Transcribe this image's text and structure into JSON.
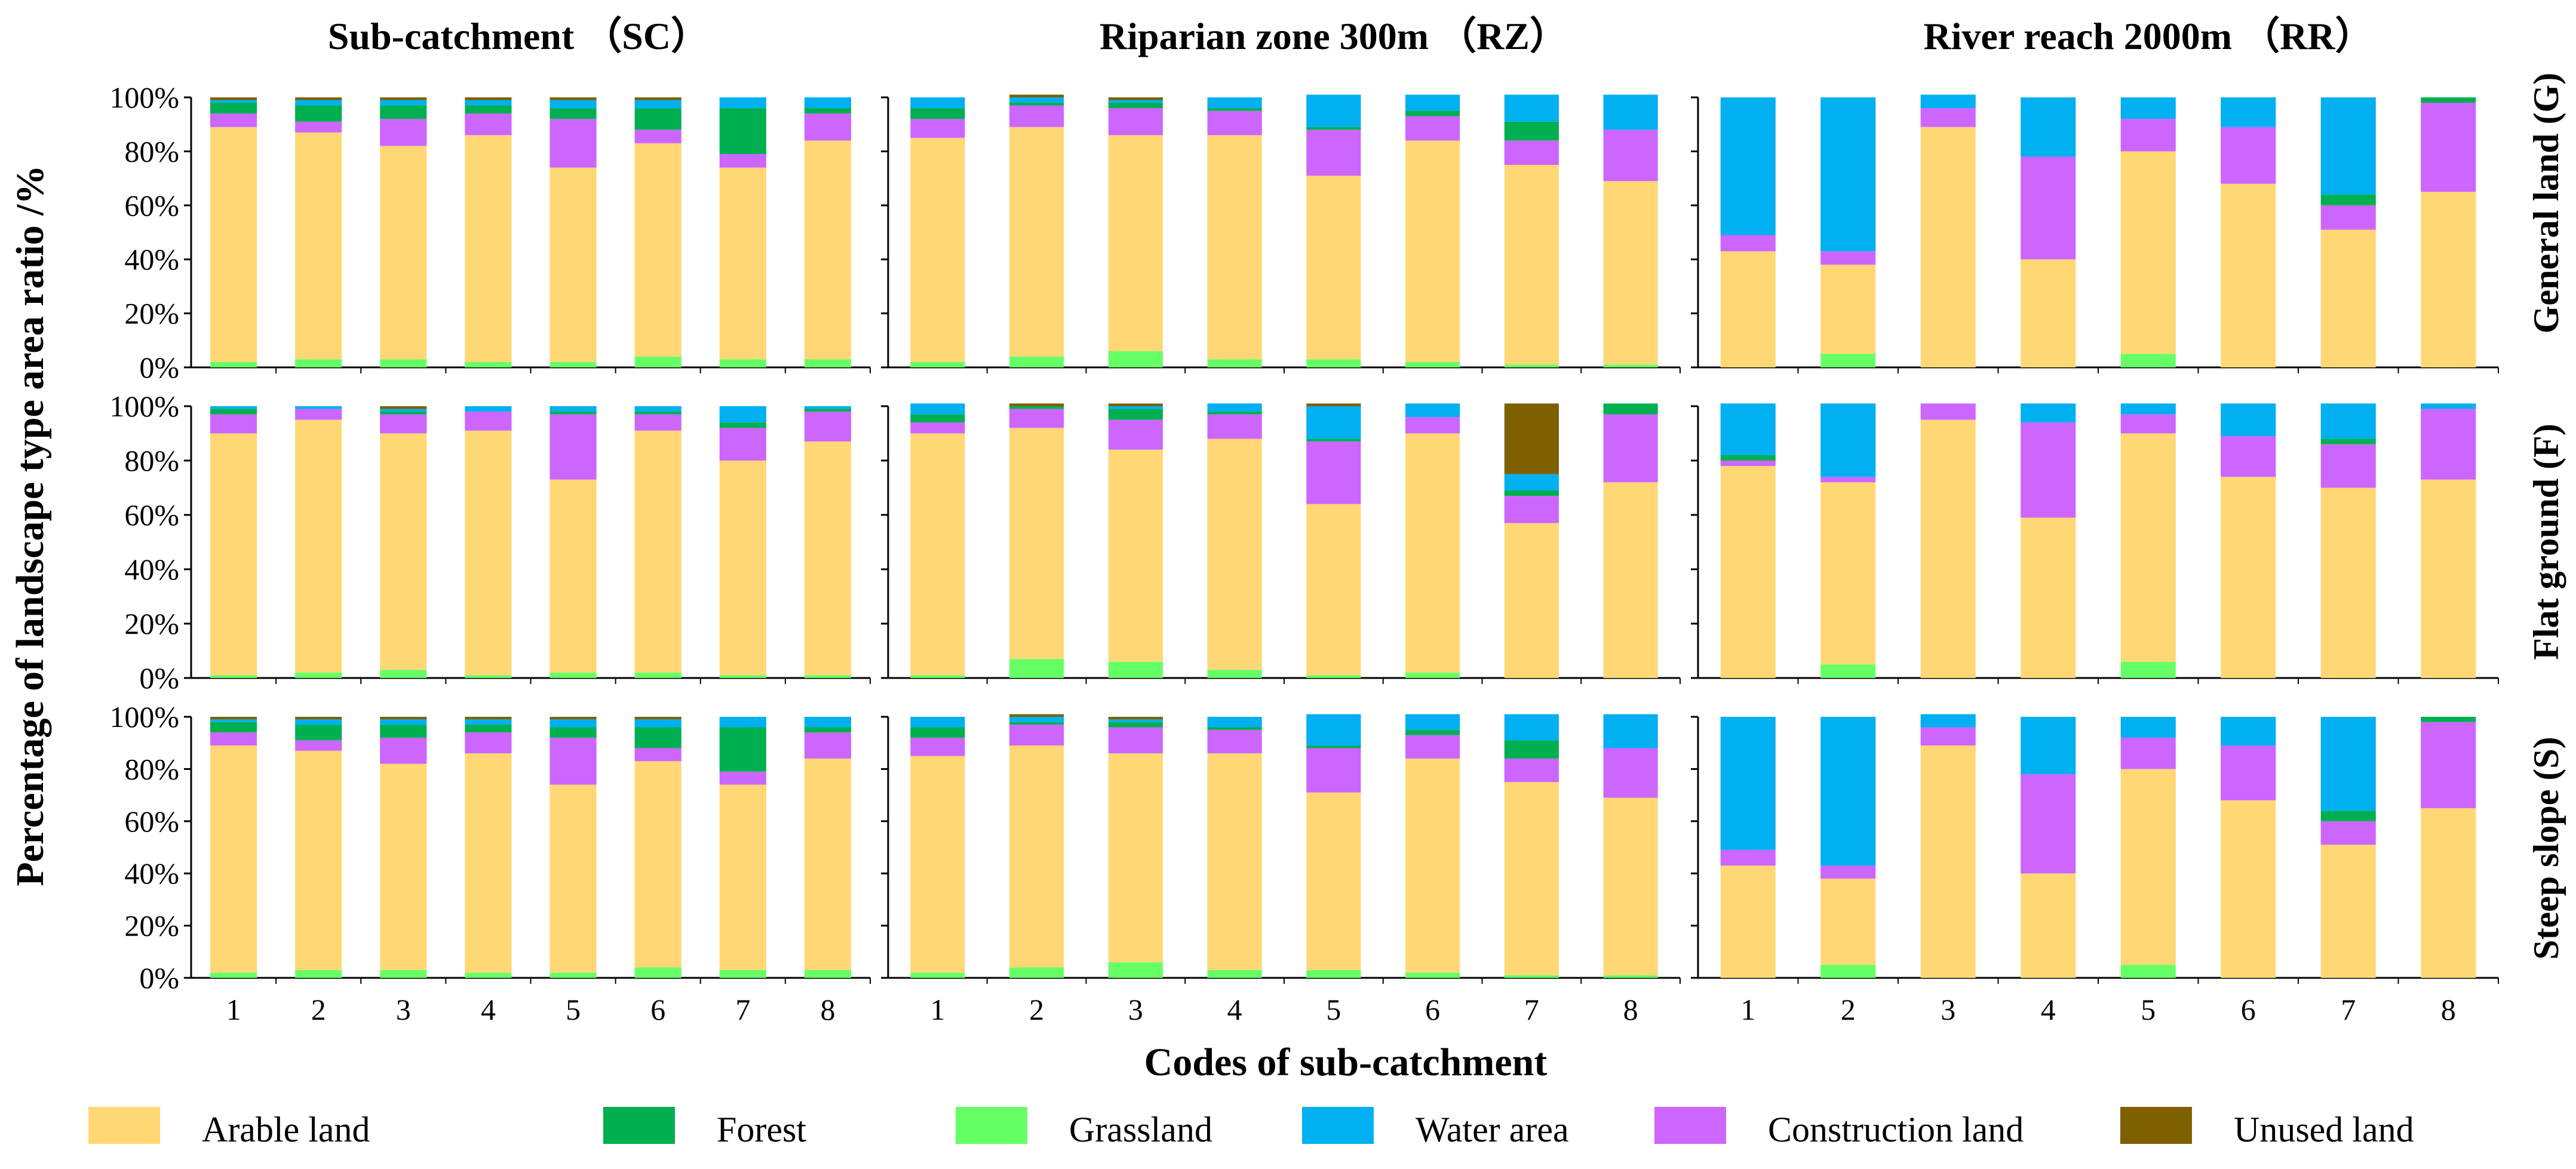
{
  "chart_data": {
    "type": "bar",
    "stacked": true,
    "title": "",
    "xlabel": "Codes of sub-catchment",
    "ylabel": "Percentage of landscape type area ratio /%",
    "ylim": [
      0,
      100
    ],
    "y_ticks": [
      "0%",
      "20%",
      "40%",
      "60%",
      "80%",
      "100%"
    ],
    "categories": [
      "1",
      "2",
      "3",
      "4",
      "5",
      "6",
      "7",
      "8"
    ],
    "column_titles": [
      "Sub-catchment （SC）",
      "Riparian zone 300m （RZ）",
      "River reach 2000m （RR）"
    ],
    "row_titles": [
      "General land (G)",
      "Flat ground (F)",
      "Steep slope (S)"
    ],
    "series_names": [
      "Arable land",
      "Forest",
      "Grassland",
      "Water area",
      "Construction land",
      "Unused land"
    ],
    "series_colors": {
      "Grassland": "#66ff66",
      "Arable land": "#ffd875",
      "Construction land": "#cc66ff",
      "Forest": "#00b050",
      "Water area": "#00b0f0",
      "Unused land": "#7f6000"
    },
    "stack_order": [
      "Grassland",
      "Arable land",
      "Construction land",
      "Forest",
      "Water area",
      "Unused land"
    ],
    "panels": [
      {
        "row": "General land (G)",
        "column": "Sub-catchment （SC）",
        "series": [
          {
            "name": "Grassland",
            "values": [
              2,
              3,
              3,
              2,
              2,
              4,
              3,
              3
            ]
          },
          {
            "name": "Arable land",
            "values": [
              87,
              84,
              79,
              84,
              72,
              79,
              71,
              81
            ]
          },
          {
            "name": "Construction land",
            "values": [
              5,
              4,
              10,
              8,
              18,
              5,
              5,
              10
            ]
          },
          {
            "name": "Forest",
            "values": [
              4,
              6,
              5,
              3,
              4,
              8,
              17,
              2
            ]
          },
          {
            "name": "Water area",
            "values": [
              1,
              2,
              2,
              2,
              3,
              3,
              4,
              4
            ]
          },
          {
            "name": "Unused land",
            "values": [
              1,
              1,
              1,
              1,
              1,
              1,
              0,
              0
            ]
          }
        ]
      },
      {
        "row": "General land (G)",
        "column": "Riparian zone 300m （RZ）",
        "series": [
          {
            "name": "Grassland",
            "values": [
              2,
              4,
              6,
              3,
              3,
              2,
              1,
              1
            ]
          },
          {
            "name": "Arable land",
            "values": [
              83,
              85,
              80,
              83,
              68,
              82,
              74,
              68
            ]
          },
          {
            "name": "Construction land",
            "values": [
              7,
              8,
              10,
              9,
              17,
              9,
              9,
              19
            ]
          },
          {
            "name": "Forest",
            "values": [
              4,
              1,
              2,
              1,
              1,
              2,
              7,
              0
            ]
          },
          {
            "name": "Water area",
            "values": [
              4,
              2,
              1,
              4,
              12,
              6,
              10,
              13
            ]
          },
          {
            "name": "Unused land",
            "values": [
              0,
              1,
              1,
              0,
              0,
              0,
              0,
              0
            ]
          }
        ]
      },
      {
        "row": "General land (G)",
        "column": "River reach 2000m （RR）",
        "series": [
          {
            "name": "Grassland",
            "values": [
              0,
              5,
              0,
              0,
              5,
              0,
              0,
              0
            ]
          },
          {
            "name": "Arable land",
            "values": [
              43,
              33,
              89,
              40,
              75,
              68,
              51,
              65
            ]
          },
          {
            "name": "Construction land",
            "values": [
              6,
              5,
              7,
              38,
              12,
              21,
              9,
              33
            ]
          },
          {
            "name": "Forest",
            "values": [
              0,
              0,
              0,
              0,
              0,
              0,
              4,
              2
            ]
          },
          {
            "name": "Water area",
            "values": [
              51,
              57,
              5,
              22,
              8,
              11,
              36,
              0
            ]
          },
          {
            "name": "Unused land",
            "values": [
              0,
              0,
              0,
              0,
              0,
              0,
              0,
              0
            ]
          }
        ]
      },
      {
        "row": "Flat ground (F)",
        "column": "Sub-catchment （SC）",
        "series": [
          {
            "name": "Grassland",
            "values": [
              1,
              2,
              3,
              1,
              2,
              2,
              1,
              1
            ]
          },
          {
            "name": "Arable land",
            "values": [
              89,
              93,
              87,
              90,
              71,
              89,
              79,
              86
            ]
          },
          {
            "name": "Construction land",
            "values": [
              7,
              4,
              7,
              7,
              24,
              6,
              12,
              11
            ]
          },
          {
            "name": "Forest",
            "values": [
              2,
              0,
              1,
              0,
              1,
              1,
              2,
              1
            ]
          },
          {
            "name": "Water area",
            "values": [
              1,
              1,
              1,
              2,
              2,
              2,
              6,
              1
            ]
          },
          {
            "name": "Unused land",
            "values": [
              0,
              0,
              1,
              0,
              0,
              0,
              0,
              0
            ]
          }
        ]
      },
      {
        "row": "Flat ground (F)",
        "column": "Riparian zone 300m （RZ）",
        "series": [
          {
            "name": "Grassland",
            "values": [
              1,
              7,
              6,
              3,
              1,
              2,
              0,
              0
            ]
          },
          {
            "name": "Arable land",
            "values": [
              89,
              85,
              78,
              85,
              63,
              88,
              57,
              72
            ]
          },
          {
            "name": "Construction land",
            "values": [
              4,
              7,
              11,
              9,
              23,
              6,
              10,
              25
            ]
          },
          {
            "name": "Forest",
            "values": [
              3,
              1,
              4,
              1,
              1,
              0,
              2,
              4
            ]
          },
          {
            "name": "Water area",
            "values": [
              4,
              0,
              1,
              3,
              12,
              5,
              6,
              0
            ]
          },
          {
            "name": "Unused land",
            "values": [
              0,
              1,
              1,
              0,
              1,
              0,
              26,
              0
            ]
          }
        ]
      },
      {
        "row": "Flat ground (F)",
        "column": "River reach 2000m （RR）",
        "series": [
          {
            "name": "Grassland",
            "values": [
              0,
              5,
              0,
              0,
              6,
              0,
              0,
              0
            ]
          },
          {
            "name": "Arable land",
            "values": [
              78,
              67,
              95,
              59,
              84,
              74,
              70,
              73
            ]
          },
          {
            "name": "Construction land",
            "values": [
              2,
              2,
              6,
              35,
              7,
              15,
              16,
              26
            ]
          },
          {
            "name": "Forest",
            "values": [
              2,
              0,
              0,
              0,
              0,
              0,
              2,
              0
            ]
          },
          {
            "name": "Water area",
            "values": [
              19,
              27,
              0,
              7,
              4,
              12,
              13,
              2
            ]
          },
          {
            "name": "Unused land",
            "values": [
              0,
              0,
              0,
              0,
              0,
              0,
              0,
              0
            ]
          }
        ]
      },
      {
        "row": "Steep slope (S)",
        "column": "Sub-catchment （SC）",
        "series": [
          {
            "name": "Grassland",
            "values": [
              2,
              3,
              3,
              2,
              2,
              4,
              3,
              3
            ]
          },
          {
            "name": "Arable land",
            "values": [
              87,
              84,
              79,
              84,
              72,
              79,
              71,
              81
            ]
          },
          {
            "name": "Construction land",
            "values": [
              5,
              4,
              10,
              8,
              18,
              5,
              5,
              10
            ]
          },
          {
            "name": "Forest",
            "values": [
              4,
              6,
              5,
              3,
              4,
              8,
              17,
              2
            ]
          },
          {
            "name": "Water area",
            "values": [
              1,
              2,
              2,
              2,
              3,
              3,
              4,
              4
            ]
          },
          {
            "name": "Unused land",
            "values": [
              1,
              1,
              1,
              1,
              1,
              1,
              0,
              0
            ]
          }
        ]
      },
      {
        "row": "Steep slope (S)",
        "column": "Riparian zone 300m （RZ）",
        "series": [
          {
            "name": "Grassland",
            "values": [
              2,
              4,
              6,
              3,
              3,
              2,
              1,
              1
            ]
          },
          {
            "name": "Arable land",
            "values": [
              83,
              85,
              80,
              83,
              68,
              82,
              74,
              68
            ]
          },
          {
            "name": "Construction land",
            "values": [
              7,
              8,
              10,
              9,
              17,
              9,
              9,
              19
            ]
          },
          {
            "name": "Forest",
            "values": [
              4,
              1,
              2,
              1,
              1,
              2,
              7,
              0
            ]
          },
          {
            "name": "Water area",
            "values": [
              4,
              2,
              1,
              4,
              12,
              6,
              10,
              13
            ]
          },
          {
            "name": "Unused land",
            "values": [
              0,
              1,
              1,
              0,
              0,
              0,
              0,
              0
            ]
          }
        ]
      },
      {
        "row": "Steep slope (S)",
        "column": "River reach 2000m （RR）",
        "series": [
          {
            "name": "Grassland",
            "values": [
              0,
              5,
              0,
              0,
              5,
              0,
              0,
              0
            ]
          },
          {
            "name": "Arable land",
            "values": [
              43,
              33,
              89,
              40,
              75,
              68,
              51,
              65
            ]
          },
          {
            "name": "Construction land",
            "values": [
              6,
              5,
              7,
              38,
              12,
              21,
              9,
              33
            ]
          },
          {
            "name": "Forest",
            "values": [
              0,
              0,
              0,
              0,
              0,
              0,
              4,
              2
            ]
          },
          {
            "name": "Water area",
            "values": [
              51,
              57,
              5,
              22,
              8,
              11,
              36,
              0
            ]
          },
          {
            "name": "Unused land",
            "values": [
              0,
              0,
              0,
              0,
              0,
              0,
              0,
              0
            ]
          }
        ]
      }
    ]
  }
}
